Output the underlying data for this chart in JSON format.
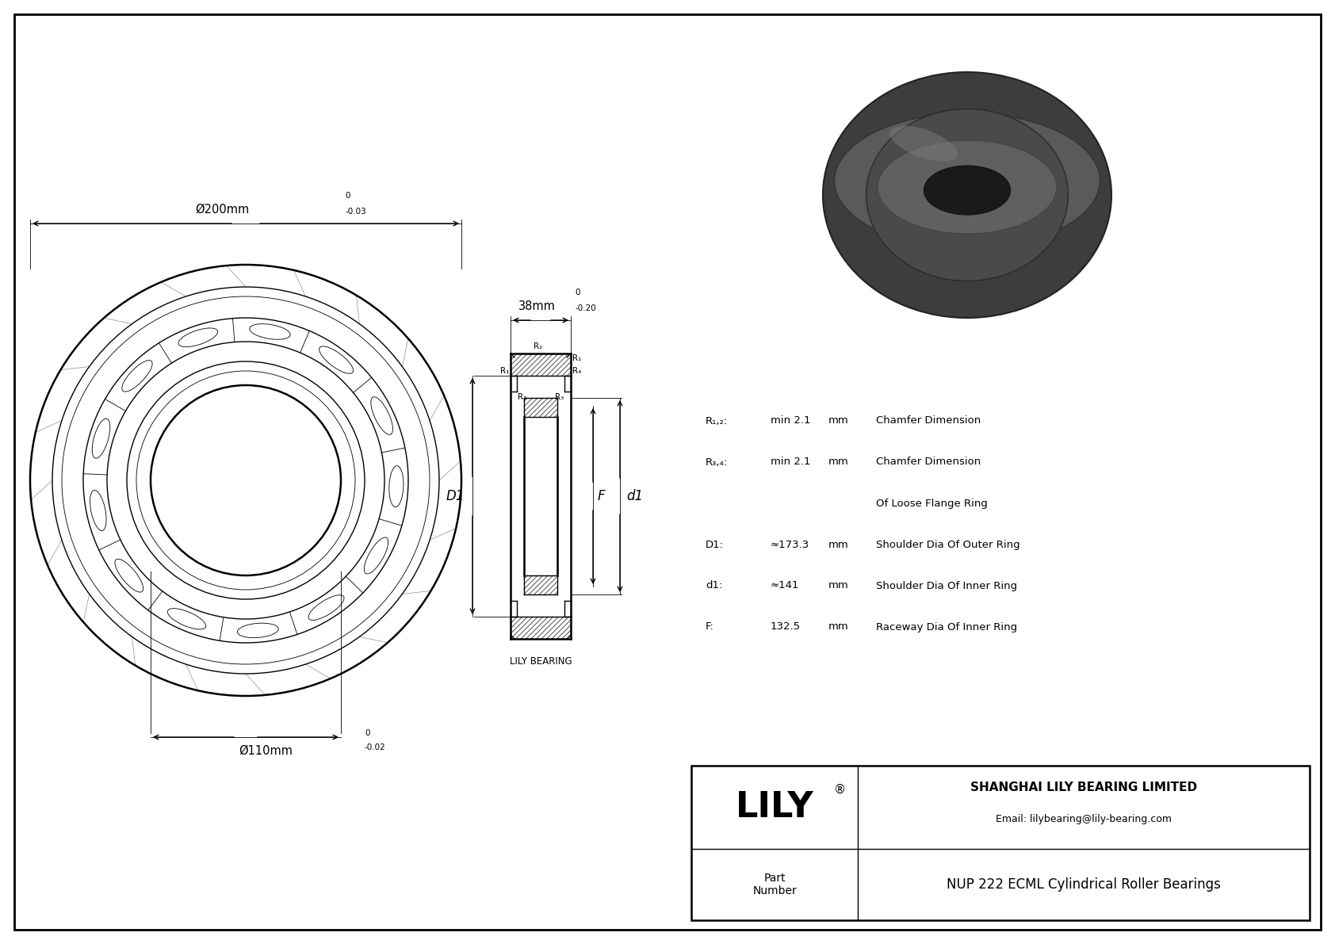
{
  "bg_color": "#ffffff",
  "drawing_color": "#000000",
  "outer_diameter_label": "Ø200mm",
  "inner_diameter_label": "Ø110mm",
  "width_label": "38mm",
  "dim_D1_label": "D1",
  "dim_d1_label": "d1",
  "dim_F_label": "F",
  "specs": [
    {
      "key": "R₁,₂:",
      "value": "min 2.1",
      "unit": "mm",
      "desc": "Chamfer Dimension"
    },
    {
      "key": "R₃,₄:",
      "value": "min 2.1",
      "unit": "mm",
      "desc": "Chamfer Dimension"
    },
    {
      "key": "",
      "value": "",
      "unit": "",
      "desc": "Of Loose Flange Ring"
    },
    {
      "key": "D1:",
      "value": "≈173.3",
      "unit": "mm",
      "desc": "Shoulder Dia Of Outer Ring"
    },
    {
      "key": "d1:",
      "value": "≈141",
      "unit": "mm",
      "desc": "Shoulder Dia Of Inner Ring"
    },
    {
      "key": "F:",
      "value": "132.5",
      "unit": "mm",
      "desc": "Raceway Dia Of Inner Ring"
    }
  ],
  "company": "SHANGHAI LILY BEARING LIMITED",
  "email": "Email: lilybearing@lily-bearing.com",
  "lily_logo": "LILY",
  "part_label": "Part\nNumber",
  "part_number": "NUP 222 ECML Cylindrical Roller Bearings",
  "lily_bearing_label": "LILY BEARING"
}
